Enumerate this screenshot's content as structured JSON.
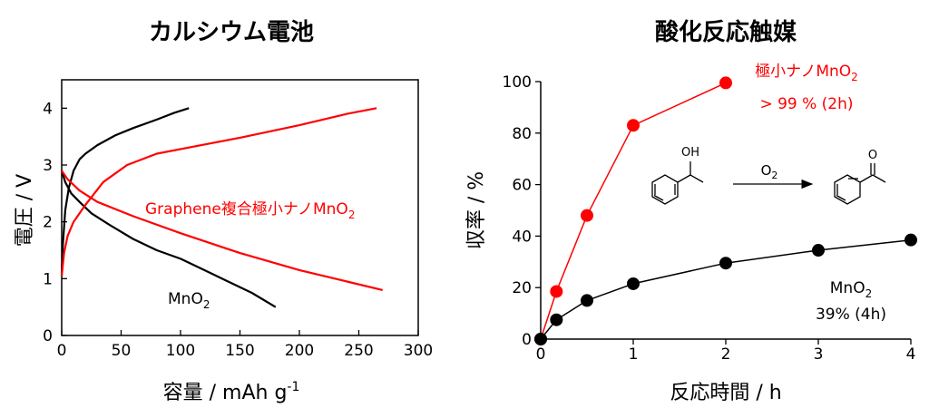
{
  "chart_data": [
    {
      "type": "line",
      "title": "カルシウム電池",
      "xlabel": "容量 / mAh g",
      "xlabel_sup": "-1",
      "ylabel": "電圧 / V",
      "xlim": [
        0,
        300
      ],
      "ylim": [
        0,
        4.5
      ],
      "x_ticks": [
        "0",
        "50",
        "100",
        "150",
        "200",
        "250",
        "300"
      ],
      "y_ticks": [
        "0",
        "1",
        "2",
        "3",
        "4"
      ],
      "grid": false,
      "colors": {
        "black": "#000000",
        "red": "#ff0000"
      },
      "annotations": [
        {
          "text": "Graphene複合極小ナノMnO",
          "sub": "2",
          "color": "#ff0000"
        },
        {
          "text": "MnO",
          "sub": "2",
          "color": "#000000"
        }
      ],
      "series": [
        {
          "color": "#000000",
          "x": [
            0,
            1,
            3,
            6,
            10,
            15,
            20,
            30,
            45,
            60,
            80,
            95,
            107
          ],
          "y": [
            1.05,
            1.6,
            2.2,
            2.6,
            2.9,
            3.1,
            3.2,
            3.35,
            3.52,
            3.65,
            3.8,
            3.92,
            4.0
          ]
        },
        {
          "color": "#000000",
          "x": [
            0,
            3,
            8,
            15,
            25,
            40,
            60,
            80,
            100,
            120,
            140,
            160,
            180
          ],
          "y": [
            2.9,
            2.7,
            2.5,
            2.35,
            2.15,
            1.95,
            1.7,
            1.5,
            1.35,
            1.15,
            0.95,
            0.75,
            0.5
          ]
        },
        {
          "color": "#ff0000",
          "x": [
            0,
            2,
            5,
            10,
            20,
            35,
            55,
            80,
            110,
            150,
            200,
            240,
            265
          ],
          "y": [
            1.05,
            1.45,
            1.75,
            2.0,
            2.3,
            2.7,
            3.0,
            3.2,
            3.32,
            3.48,
            3.7,
            3.9,
            4.0
          ]
        },
        {
          "color": "#ff0000",
          "x": [
            0,
            5,
            15,
            30,
            60,
            100,
            150,
            200,
            240,
            270
          ],
          "y": [
            2.9,
            2.75,
            2.55,
            2.35,
            2.1,
            1.8,
            1.45,
            1.15,
            0.95,
            0.8
          ]
        }
      ]
    },
    {
      "type": "line",
      "title": "酸化反応触媒",
      "xlabel": "反応時間 / h",
      "ylabel": "収率 / %",
      "xlim": [
        0,
        4
      ],
      "ylim": [
        0,
        100
      ],
      "x_ticks": [
        "0",
        "1",
        "2",
        "3",
        "4"
      ],
      "y_ticks": [
        "0",
        "20",
        "40",
        "60",
        "80",
        "100"
      ],
      "grid": false,
      "colors": {
        "black": "#000000",
        "red": "#ff0000"
      },
      "annotations": [
        {
          "text": "極小ナノMnO",
          "sub": "2",
          "color": "#ff0000"
        },
        {
          "text": "> 99 % (2h)",
          "color": "#ff0000"
        },
        {
          "text": "MnO",
          "sub": "2",
          "color": "#000000"
        },
        {
          "text": "39% (4h)",
          "color": "#000000"
        }
      ],
      "series": [
        {
          "color": "#ff0000",
          "x": [
            0,
            0.17,
            0.5,
            1,
            2
          ],
          "y": [
            0,
            18.5,
            48,
            83,
            99.5
          ]
        },
        {
          "color": "#000000",
          "x": [
            0,
            0.17,
            0.5,
            1,
            2,
            3,
            4
          ],
          "y": [
            0,
            7.5,
            15,
            21.5,
            29.5,
            34.5,
            38.5
          ]
        }
      ],
      "reaction": {
        "reactant_label": "OH",
        "reagent": "O",
        "reagent_sub": "2",
        "product_label": "O"
      }
    }
  ]
}
